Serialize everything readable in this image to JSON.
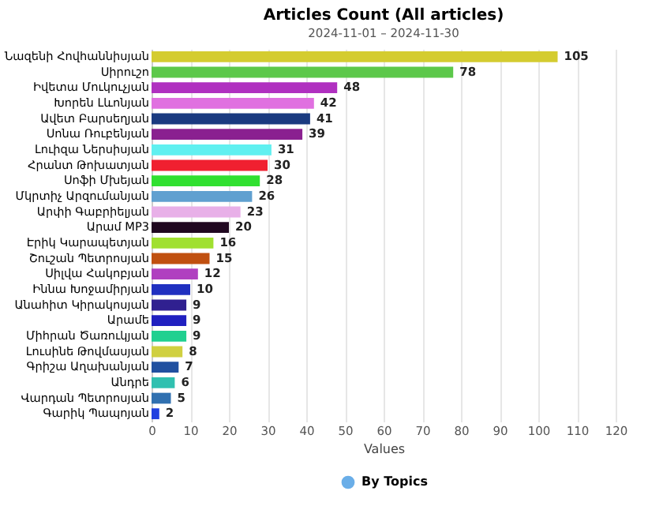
{
  "chart_data": {
    "type": "bar",
    "orientation": "horizontal",
    "title": "Articles Count (All articles)",
    "subtitle": "2024-11-01 – 2024-11-30",
    "xlabel": "Values",
    "categories": [
      "Նազենի Հովհաննիսյան",
      "Սիրուշո",
      "Իվետա Մուկուչյան",
      "Խորեն Լևոնյան",
      "Ավետ Բարսեղյան",
      "Սոնա Ռուբենյան",
      "Լուիզա Ներսիսյան",
      "Հրանտ Թոխատյան",
      "Սոֆի Մխեյան",
      "Մկրտիչ Արզումանյան",
      "Արփի Գաբրիելյան",
      "Արամ MP3",
      "Էրիկ Կարապետյան",
      "Շուշան Պետրոսյան",
      "Սիլվա Հակոբյան",
      "Իննա Խոջամիրյան",
      "Անահիտ Կիրակոսյան",
      "Արամե",
      "Միհրան Ծառուկյան",
      "Լուսինե Թովմասյան",
      "Գրիշա Աղախանյան",
      "Անդրե",
      "Վարդան Պետրոսյան",
      "Գարիկ Պապոյան"
    ],
    "series": [
      {
        "name": "By Topics",
        "color": "#6aaee8",
        "values": [
          105,
          78,
          48,
          42,
          41,
          39,
          31,
          30,
          28,
          26,
          23,
          20,
          16,
          15,
          12,
          10,
          9,
          9,
          9,
          8,
          7,
          6,
          5,
          2
        ],
        "colors": [
          "#d4cc30",
          "#5cc84a",
          "#b030c0",
          "#e070e0",
          "#1a3a80",
          "#8a2090",
          "#60f0f0",
          "#f02030",
          "#30e030",
          "#60a0d0",
          "#e8b0e8",
          "#200820",
          "#a0e030",
          "#c05010",
          "#b040c0",
          "#2030c0",
          "#302090",
          "#2020c0",
          "#20d090",
          "#d0d040",
          "#2050a0",
          "#30c0b0",
          "#3070b0",
          "#2040e0"
        ]
      }
    ],
    "xlim": [
      0,
      120
    ],
    "xticks": [
      0,
      10,
      20,
      30,
      40,
      50,
      60,
      70,
      80,
      90,
      100,
      110,
      120
    ],
    "grid": "x",
    "data_labels": true,
    "legend": "bottom"
  }
}
